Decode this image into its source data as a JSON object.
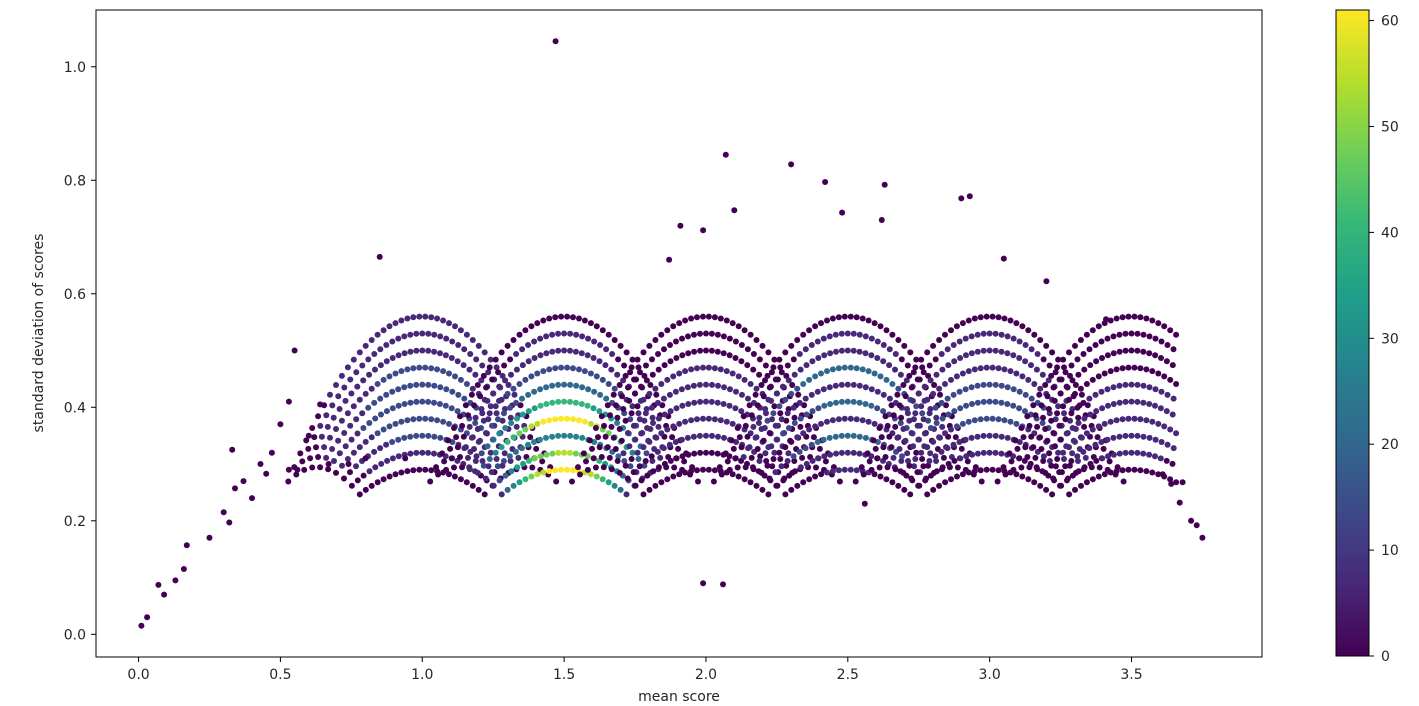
{
  "chart_data": {
    "type": "scatter",
    "title": "",
    "xlabel": "mean score",
    "ylabel": "standard deviation of scores",
    "xlim": [
      -0.15,
      3.96
    ],
    "ylim": [
      -0.04,
      1.1
    ],
    "x_ticks": [
      "0.0",
      "0.5",
      "1.0",
      "1.5",
      "2.0",
      "2.5",
      "3.0",
      "3.5"
    ],
    "y_ticks": [
      "0.0",
      "0.2",
      "0.4",
      "0.6",
      "0.8",
      "1.0"
    ],
    "grid": false,
    "colorbar": {
      "colormap": "viridis",
      "range": [
        0,
        61
      ],
      "ticks": [
        "0",
        "10",
        "20",
        "30",
        "40",
        "50",
        "60"
      ]
    },
    "point_color_scale": [
      "#440154",
      "#482878",
      "#3e4989",
      "#31688e",
      "#26828e",
      "#1f9e89",
      "#35b779",
      "#6ece58",
      "#b5de2b",
      "#fde725"
    ],
    "arcs": [
      {
        "center": 1.0,
        "counts": [
          1,
          8,
          12,
          14,
          16,
          14,
          12,
          10,
          8,
          6
        ]
      },
      {
        "center": 1.5,
        "counts": [
          61,
          52,
          30,
          61,
          40,
          20,
          14,
          8,
          4,
          3
        ]
      },
      {
        "center": 2.0,
        "counts": [
          0,
          3,
          5,
          8,
          10,
          8,
          5,
          3,
          2,
          1
        ]
      },
      {
        "center": 2.5,
        "counts": [
          4,
          6,
          20,
          5,
          18,
          6,
          20,
          8,
          4,
          3
        ]
      },
      {
        "center": 3.0,
        "counts": [
          0,
          4,
          8,
          12,
          16,
          14,
          10,
          6,
          4,
          2
        ]
      },
      {
        "center": 3.5,
        "counts": [
          2,
          4,
          6,
          8,
          6,
          4,
          3,
          2,
          1,
          1
        ]
      }
    ],
    "arc_sd_at_center": [
      0.29,
      0.32,
      0.35,
      0.38,
      0.41,
      0.44,
      0.47,
      0.5,
      0.53,
      0.56
    ],
    "points": [
      {
        "x": 0.01,
        "y": 0.015,
        "c": 0
      },
      {
        "x": 0.03,
        "y": 0.03,
        "c": 0
      },
      {
        "x": 0.07,
        "y": 0.087,
        "c": 0
      },
      {
        "x": 0.09,
        "y": 0.07,
        "c": 0
      },
      {
        "x": 0.13,
        "y": 0.095,
        "c": 0
      },
      {
        "x": 0.16,
        "y": 0.115,
        "c": 0
      },
      {
        "x": 0.17,
        "y": 0.157,
        "c": 0
      },
      {
        "x": 0.25,
        "y": 0.17,
        "c": 0
      },
      {
        "x": 0.3,
        "y": 0.215,
        "c": 0
      },
      {
        "x": 0.32,
        "y": 0.197,
        "c": 0
      },
      {
        "x": 0.34,
        "y": 0.257,
        "c": 0
      },
      {
        "x": 0.37,
        "y": 0.27,
        "c": 0
      },
      {
        "x": 0.4,
        "y": 0.24,
        "c": 0
      },
      {
        "x": 0.43,
        "y": 0.3,
        "c": 0
      },
      {
        "x": 0.45,
        "y": 0.283,
        "c": 0
      },
      {
        "x": 0.47,
        "y": 0.32,
        "c": 0
      },
      {
        "x": 0.5,
        "y": 0.37,
        "c": 0
      },
      {
        "x": 0.53,
        "y": 0.41,
        "c": 0
      },
      {
        "x": 0.55,
        "y": 0.5,
        "c": 0
      },
      {
        "x": 0.56,
        "y": 0.29,
        "c": 0
      },
      {
        "x": 0.33,
        "y": 0.325,
        "c": 0
      },
      {
        "x": 0.53,
        "y": 0.29,
        "c": 0
      },
      {
        "x": 0.6,
        "y": 0.35,
        "c": 0
      },
      {
        "x": 0.64,
        "y": 0.405,
        "c": 0
      },
      {
        "x": 0.67,
        "y": 0.3,
        "c": 0
      },
      {
        "x": 0.74,
        "y": 0.3,
        "c": 0
      },
      {
        "x": 0.8,
        "y": 0.31,
        "c": 0
      },
      {
        "x": 0.85,
        "y": 0.665,
        "c": 0
      },
      {
        "x": 0.94,
        "y": 0.31,
        "c": 0
      },
      {
        "x": 1.47,
        "y": 1.045,
        "c": 0
      },
      {
        "x": 2.07,
        "y": 0.845,
        "c": 0
      },
      {
        "x": 2.3,
        "y": 0.828,
        "c": 0
      },
      {
        "x": 2.42,
        "y": 0.797,
        "c": 0
      },
      {
        "x": 2.63,
        "y": 0.792,
        "c": 0
      },
      {
        "x": 2.1,
        "y": 0.747,
        "c": 0
      },
      {
        "x": 2.48,
        "y": 0.743,
        "c": 0
      },
      {
        "x": 2.62,
        "y": 0.73,
        "c": 0
      },
      {
        "x": 2.9,
        "y": 0.768,
        "c": 0
      },
      {
        "x": 2.93,
        "y": 0.772,
        "c": 0
      },
      {
        "x": 3.05,
        "y": 0.662,
        "c": 0
      },
      {
        "x": 3.2,
        "y": 0.622,
        "c": 0
      },
      {
        "x": 3.41,
        "y": 0.555,
        "c": 0
      },
      {
        "x": 3.71,
        "y": 0.2,
        "c": 0
      },
      {
        "x": 3.73,
        "y": 0.192,
        "c": 0
      },
      {
        "x": 3.75,
        "y": 0.17,
        "c": 0
      },
      {
        "x": 3.67,
        "y": 0.232,
        "c": 0
      },
      {
        "x": 3.64,
        "y": 0.265,
        "c": 0
      },
      {
        "x": 3.61,
        "y": 0.282,
        "c": 0
      },
      {
        "x": 3.68,
        "y": 0.268,
        "c": 0
      },
      {
        "x": 1.91,
        "y": 0.72,
        "c": 0
      },
      {
        "x": 1.99,
        "y": 0.712,
        "c": 0
      },
      {
        "x": 1.87,
        "y": 0.66,
        "c": 0
      },
      {
        "x": 2.56,
        "y": 0.23,
        "c": 0
      },
      {
        "x": 2.06,
        "y": 0.088,
        "c": 0
      },
      {
        "x": 1.99,
        "y": 0.09,
        "c": 0
      }
    ]
  }
}
